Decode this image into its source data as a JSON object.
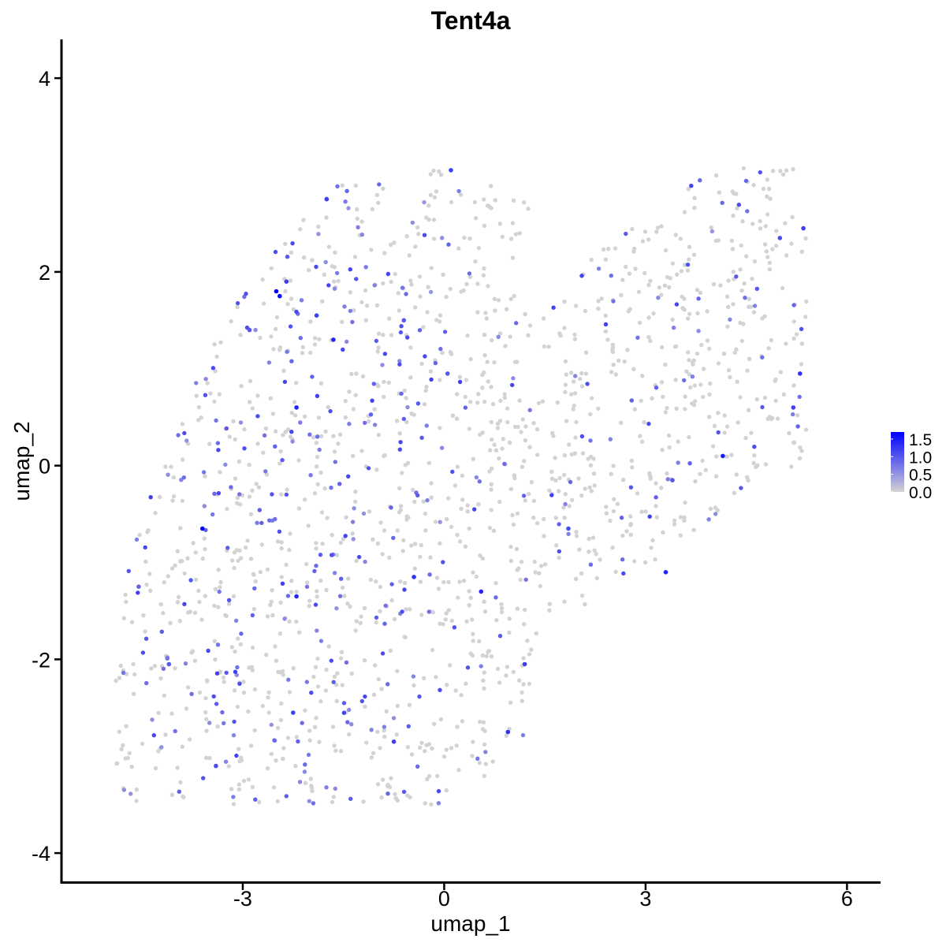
{
  "chart_data": {
    "type": "scatter",
    "title": "Tent4a",
    "xlabel": "umap_1",
    "ylabel": "umap_2",
    "xlim": [
      -5.7,
      6.5
    ],
    "ylim": [
      -4.3,
      4.4
    ],
    "x_ticks": [
      "-3",
      "0",
      "3",
      "6"
    ],
    "y_ticks": [
      "-4",
      "-2",
      "0",
      "2",
      "4"
    ],
    "grid": false,
    "legend": {
      "placement": "right",
      "type": "colorbar",
      "labels": [
        "1.5",
        "1.0",
        "0.5",
        "0.0"
      ],
      "range": [
        0.0,
        1.7
      ],
      "color_low": "#d3d3d3",
      "color_high": "#0000ff"
    },
    "point_color_low": "#d3d3d3",
    "point_color_high": "#0000ff",
    "n_cells_approx": 1650,
    "region_description": "Cloud of single-cell points (umap_1 in [-4.9, 5.4], umap_2 in [-3.5, 3.1]); most cells grey (expression 0.0), scattered purple cells with expression 0.5-1.7, denser on the left upper lobe.",
    "highlighted_points": [
      {
        "x": -2.5,
        "y": 1.8,
        "value": 1.7
      },
      {
        "x": -2.45,
        "y": 1.75,
        "value": 1.6
      },
      {
        "x": -3.6,
        "y": -0.65,
        "value": 1.7
      },
      {
        "x": -2.2,
        "y": -1.35,
        "value": 1.4
      },
      {
        "x": -2.2,
        "y": 0.6,
        "value": 1.4
      },
      {
        "x": -1.65,
        "y": 1.3,
        "value": 1.4
      },
      {
        "x": -1.9,
        "y": 1.55,
        "value": 1.2
      },
      {
        "x": -1.75,
        "y": 2.75,
        "value": 1.2
      },
      {
        "x": -2.35,
        "y": 1.9,
        "value": 1.2
      },
      {
        "x": 0.55,
        "y": -1.3,
        "value": 1.4
      },
      {
        "x": -0.45,
        "y": -1.15,
        "value": 1.3
      },
      {
        "x": 0.1,
        "y": 3.05,
        "value": 1.2
      },
      {
        "x": 0.95,
        "y": -2.75,
        "value": 1.3
      },
      {
        "x": 1.2,
        "y": -2.05,
        "value": 1.2
      },
      {
        "x": -0.75,
        "y": -2.85,
        "value": 1.2
      },
      {
        "x": 4.15,
        "y": 0.1,
        "value": 1.5
      },
      {
        "x": 3.3,
        "y": -1.1,
        "value": 1.4
      },
      {
        "x": 5.3,
        "y": 0.95,
        "value": 1.3
      },
      {
        "x": 5.2,
        "y": 0.6,
        "value": 1.2
      },
      {
        "x": 5.35,
        "y": 2.45,
        "value": 1.2
      },
      {
        "x": 5.0,
        "y": 2.35,
        "value": 1.1
      },
      {
        "x": -2.25,
        "y": -2.55,
        "value": 1.2
      },
      {
        "x": -3.4,
        "y": -3.1,
        "value": 1.1
      },
      {
        "x": -4.1,
        "y": -2.05,
        "value": 1.0
      },
      {
        "x": -4.55,
        "y": -1.25,
        "value": 0.9
      },
      {
        "x": 1.85,
        "y": -0.65,
        "value": 1.1
      },
      {
        "x": 3.4,
        "y": -0.15,
        "value": 1.0
      },
      {
        "x": 0.05,
        "y": 0.95,
        "value": 1.0
      },
      {
        "x": -0.6,
        "y": 1.5,
        "value": 1.0
      },
      {
        "x": -2.9,
        "y": 1.4,
        "value": 1.0
      }
    ]
  }
}
